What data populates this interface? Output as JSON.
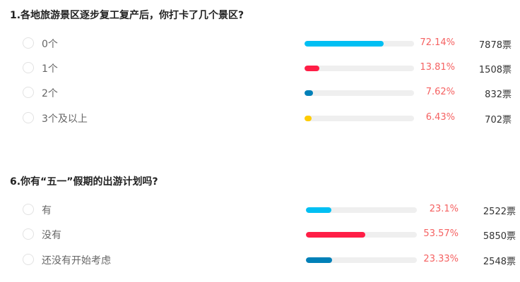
{
  "questions": [
    {
      "title": "1.各地旅游景区逐步复工复产后，你打卡了几个景区?",
      "options": [
        {
          "label": "0个",
          "percent": "72.14%",
          "fill": 72.14,
          "votes": "7878票",
          "color": "#00bff3"
        },
        {
          "label": "1个",
          "percent": "13.81%",
          "fill": 13.81,
          "votes": "1508票",
          "color": "#ff1e46"
        },
        {
          "label": "2个",
          "percent": "7.62%",
          "fill": 7.62,
          "votes": "832票",
          "color": "#0080b8"
        },
        {
          "label": "3个及以上",
          "percent": "6.43%",
          "fill": 6.43,
          "votes": "702票",
          "color": "#ffcc00"
        }
      ]
    },
    {
      "title": "6.你有“五一”假期的出游计划吗?",
      "options": [
        {
          "label": "有",
          "percent": "23.1%",
          "fill": 23.1,
          "votes": "2522票",
          "color": "#00bff3"
        },
        {
          "label": "没有",
          "percent": "53.57%",
          "fill": 53.57,
          "votes": "5850票",
          "color": "#ff1e46"
        },
        {
          "label": "还没有开始考虑",
          "percent": "23.33%",
          "fill": 23.33,
          "votes": "2548票",
          "color": "#0080b8"
        }
      ]
    }
  ]
}
